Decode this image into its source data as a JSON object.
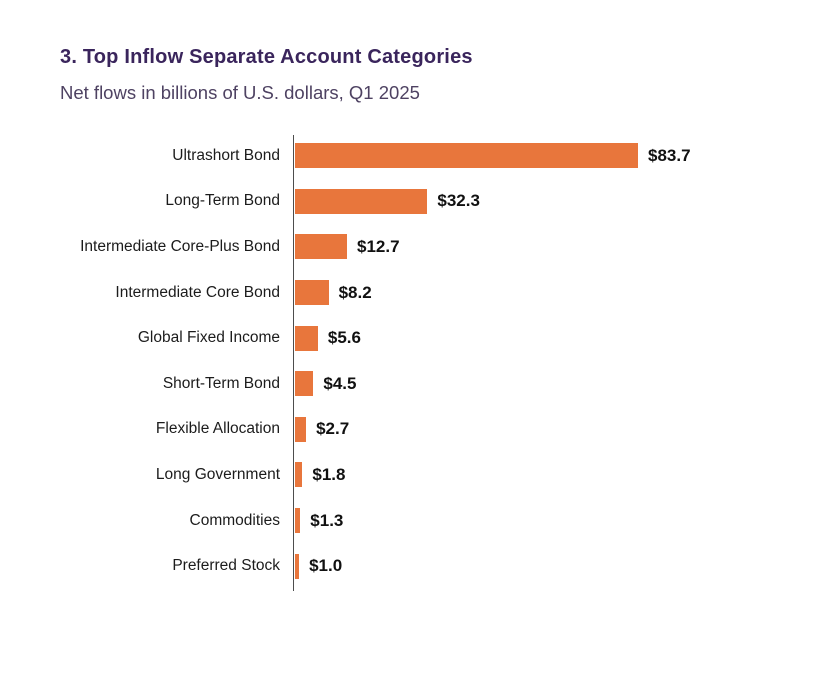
{
  "chart": {
    "title": "3. Top Inflow Separate Account Categories",
    "subtitle": "Net flows in billions of U.S. dollars, Q1 2025"
  },
  "chart_data": {
    "type": "bar",
    "orientation": "horizontal",
    "title": "3. Top Inflow Separate Account Categories",
    "subtitle": "Net flows in billions of U.S. dollars, Q1 2025",
    "xlabel": "",
    "ylabel": "",
    "xlim": [
      0,
      90
    ],
    "grid": false,
    "legend": false,
    "value_label_position": "end-of-bar",
    "categories": [
      "Ultrashort Bond",
      "Long-Term Bond",
      "Intermediate Core-Plus Bond",
      "Intermediate Core Bond",
      "Global Fixed Income",
      "Short-Term Bond",
      "Flexible Allocation",
      "Long Government",
      "Commodities",
      "Preferred Stock"
    ],
    "values": [
      83.7,
      32.3,
      12.7,
      8.2,
      5.6,
      4.5,
      2.7,
      1.8,
      1.3,
      1.0
    ],
    "value_labels": [
      "$83.7",
      "$32.3",
      "$12.7",
      "$8.2",
      "$5.6",
      "$4.5",
      "$2.7",
      "$1.8",
      "$1.3",
      "$1.0"
    ]
  },
  "colors": {
    "bar": "#E8763C",
    "title": "#3A255C",
    "subtitle": "#4E4262",
    "category_label": "#1C1C1C",
    "value_label": "#111111",
    "axis": "#4D4D4D",
    "background": "#FFFFFF"
  }
}
